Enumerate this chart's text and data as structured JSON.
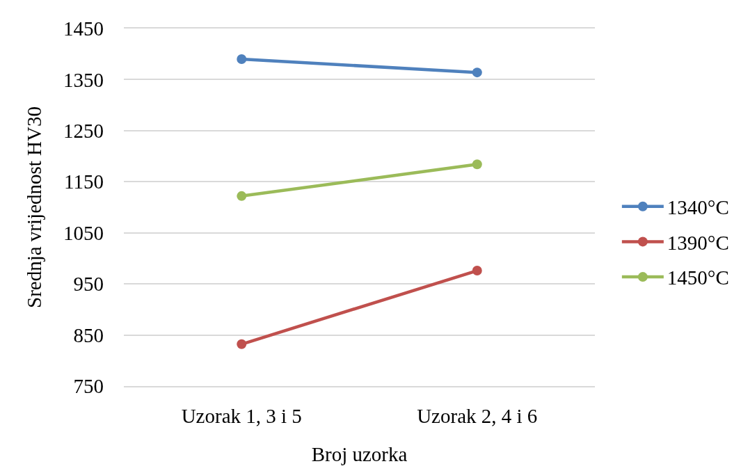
{
  "chart_data": {
    "type": "line",
    "xlabel": "Broj uzorka",
    "ylabel": "Srednja vrijednost HV30",
    "categories": [
      "Uzorak 1, 3 i 5",
      "Uzorak 2, 4 i 6"
    ],
    "series": [
      {
        "name": "1340°C",
        "color": "#4f81bd",
        "values": [
          1390,
          1364
        ]
      },
      {
        "name": "1390°C",
        "color": "#c0504d",
        "values": [
          832,
          976
        ]
      },
      {
        "name": "1450°C",
        "color": "#9bbb59",
        "values": [
          1122,
          1184
        ]
      }
    ],
    "ylim": [
      750,
      1450
    ],
    "yticks": [
      750,
      850,
      950,
      1050,
      1150,
      1250,
      1350,
      1450
    ],
    "grid": "y",
    "legend": "right",
    "marker": "circle",
    "line_style": "solid"
  }
}
